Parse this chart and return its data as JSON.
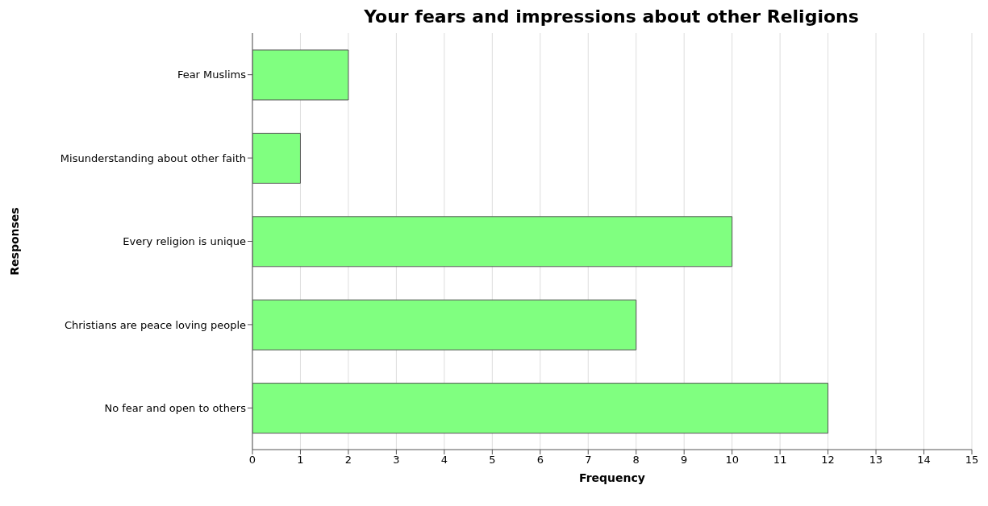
{
  "chart_data": {
    "type": "bar",
    "orientation": "horizontal",
    "title": "Your fears and impressions about other Religions",
    "xlabel": "Frequency",
    "ylabel": "Responses",
    "categories": [
      "Fear Muslims",
      "Misunderstanding about other faith",
      "Every religion is unique",
      "Christians are peace loving people",
      "No fear and open to others"
    ],
    "values": [
      2,
      1,
      10,
      8,
      12
    ],
    "color": "#80ff80",
    "xlim": [
      0,
      15
    ],
    "xticks": [
      0,
      1,
      2,
      3,
      4,
      5,
      6,
      7,
      8,
      9,
      10,
      11,
      12,
      13,
      14,
      15
    ],
    "grid": "x"
  }
}
